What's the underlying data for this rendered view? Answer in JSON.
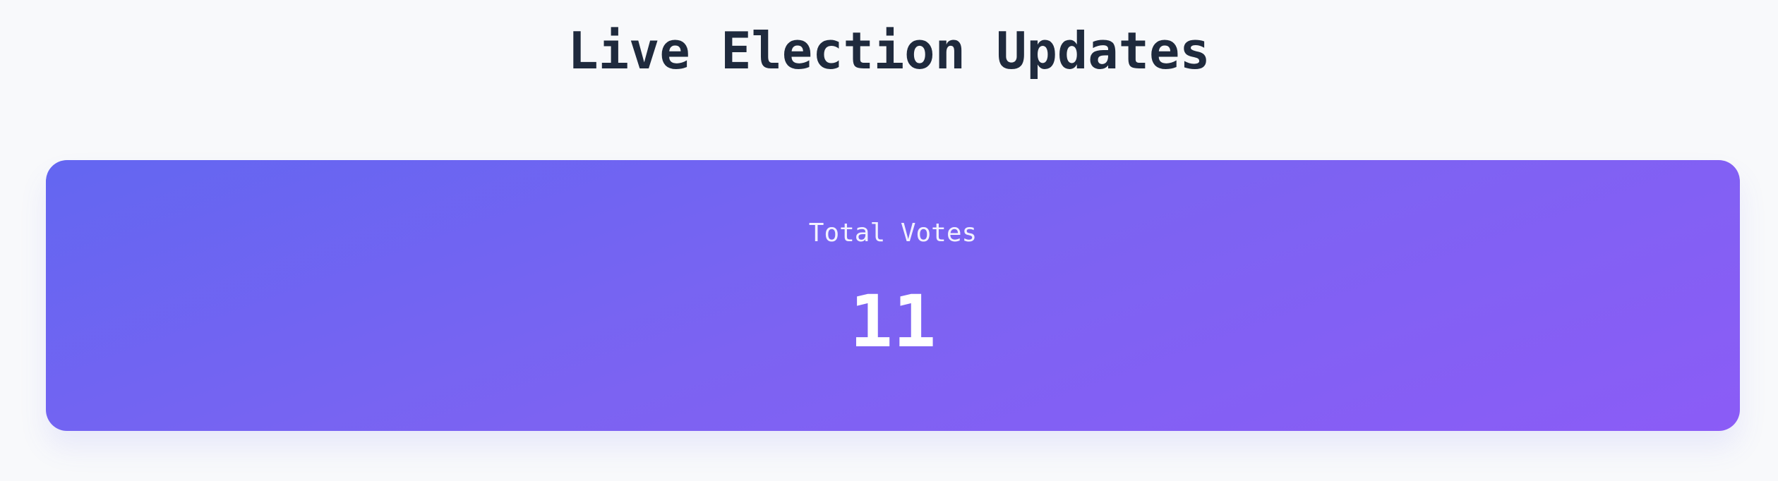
{
  "page": {
    "title": "Live Election Updates"
  },
  "stats_card": {
    "label": "Total Votes",
    "value": "11"
  },
  "colors": {
    "background": "#f8f9fb",
    "title_text": "#1f2a3d",
    "card_gradient_start": "#6366f1",
    "card_gradient_end": "#8b5cf6",
    "card_text": "#ffffff"
  }
}
